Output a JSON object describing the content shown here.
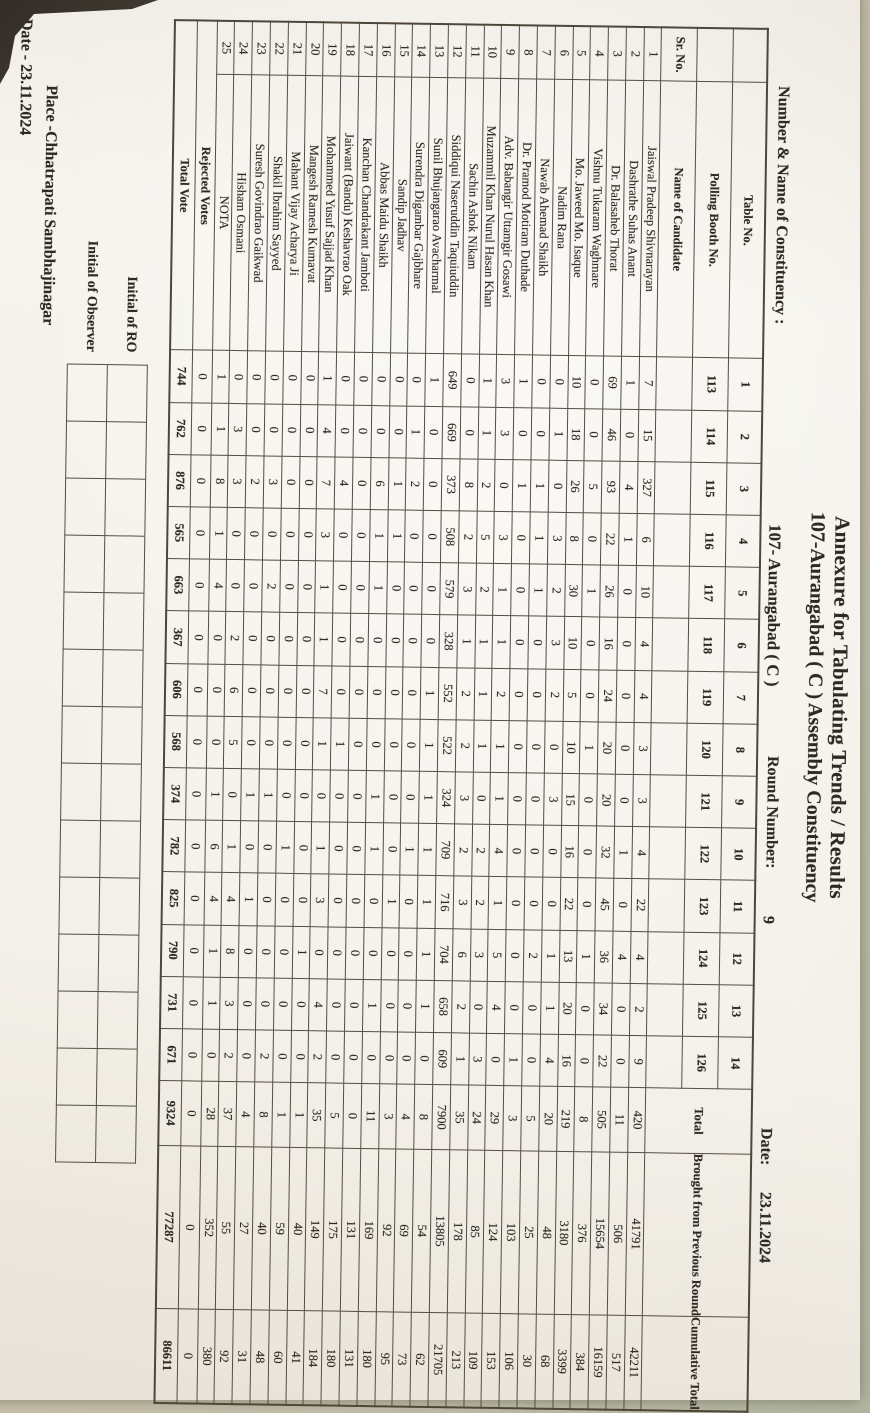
{
  "title": {
    "line1": "Annexure for Tabulating Trends / Results",
    "line2": "107-Aurangabad ( C ) Assembly Constituency"
  },
  "meta": {
    "constituency_label": "Number & Name of Constituency :",
    "constituency_value": "107- Aurangabad ( C )",
    "round_label": "Round Number:",
    "round_value": "9",
    "date_label": "Date:",
    "date_value": "23.11.2024"
  },
  "table": {
    "header": {
      "table_no_label": "Table No.",
      "polling_booth_label": "Polling Booth No.",
      "sr_no_label": "Sr. No.",
      "name_label": "Name of Candidate",
      "table_numbers": [
        "1",
        "2",
        "3",
        "4",
        "5",
        "6",
        "7",
        "8",
        "9",
        "10",
        "11",
        "12",
        "13",
        "14"
      ],
      "booth_numbers": [
        "113",
        "114",
        "115",
        "116",
        "117",
        "118",
        "119",
        "120",
        "121",
        "122",
        "123",
        "124",
        "125",
        "126"
      ],
      "total_label": "Total",
      "brought_label": "Brought from Previous Round",
      "cumulative_label": "Cumulative Total"
    },
    "rows": [
      {
        "sr": "1",
        "name": "Jaiswal Pradeep Shivnarayan",
        "v": [
          7,
          15,
          327,
          6,
          10,
          4,
          4,
          3,
          3,
          4,
          22,
          4,
          2,
          9
        ],
        "total": 420,
        "brought": 41791,
        "cumulative": 42211
      },
      {
        "sr": "2",
        "name": "Dashrathe Suhas Anant",
        "v": [
          1,
          0,
          4,
          1,
          0,
          0,
          0,
          0,
          0,
          1,
          0,
          4,
          0,
          0
        ],
        "total": 11,
        "brought": 506,
        "cumulative": 517
      },
      {
        "sr": "3",
        "name": "Dr. Balasaheb Thorat",
        "v": [
          69,
          46,
          93,
          22,
          26,
          16,
          24,
          20,
          20,
          32,
          45,
          36,
          34,
          22
        ],
        "total": 505,
        "brought": 15654,
        "cumulative": 16159
      },
      {
        "sr": "4",
        "name": "Vishnu Tukaram Waghmare",
        "v": [
          0,
          0,
          5,
          0,
          1,
          0,
          0,
          1,
          0,
          0,
          0,
          1,
          0,
          0
        ],
        "total": 8,
        "brought": 376,
        "cumulative": 384
      },
      {
        "sr": "5",
        "name": "Mo. Jaweed Mo. Isaque",
        "v": [
          10,
          18,
          26,
          8,
          30,
          10,
          5,
          10,
          15,
          16,
          22,
          13,
          20,
          16
        ],
        "total": 219,
        "brought": 3180,
        "cumulative": 3399
      },
      {
        "sr": "6",
        "name": "Nadim Rana",
        "v": [
          0,
          1,
          0,
          3,
          2,
          3,
          2,
          0,
          3,
          0,
          0,
          1,
          1,
          4
        ],
        "total": 20,
        "brought": 48,
        "cumulative": 68
      },
      {
        "sr": "7",
        "name": "Nawab Ahemad Shaikh",
        "v": [
          0,
          0,
          1,
          1,
          1,
          0,
          0,
          0,
          0,
          0,
          0,
          2,
          0,
          0
        ],
        "total": 5,
        "brought": 25,
        "cumulative": 30
      },
      {
        "sr": "8",
        "name": "Dr. Pramod Motiram Duthade",
        "v": [
          1,
          0,
          1,
          0,
          0,
          0,
          0,
          0,
          0,
          0,
          0,
          0,
          0,
          1
        ],
        "total": 3,
        "brought": 103,
        "cumulative": 106
      },
      {
        "sr": "9",
        "name": "Adv. Babangir Uttamgir Gosawi",
        "v": [
          3,
          3,
          0,
          3,
          1,
          1,
          2,
          1,
          1,
          4,
          1,
          5,
          4,
          0
        ],
        "total": 29,
        "brought": 124,
        "cumulative": 153
      },
      {
        "sr": "10",
        "name": "Muzammil Khan Nurul Hasan Khan",
        "v": [
          1,
          1,
          2,
          5,
          2,
          1,
          1,
          1,
          0,
          2,
          2,
          3,
          0,
          3
        ],
        "total": 24,
        "brought": 85,
        "cumulative": 109
      },
      {
        "sr": "11",
        "name": "Sachin Ashok Nikam",
        "v": [
          0,
          0,
          8,
          2,
          3,
          1,
          2,
          2,
          3,
          2,
          3,
          6,
          2,
          1
        ],
        "total": 35,
        "brought": 178,
        "cumulative": 213
      },
      {
        "sr": "12",
        "name": "Siddiqui Naseruddin Taquiuddin",
        "v": [
          649,
          669,
          373,
          508,
          579,
          328,
          552,
          522,
          324,
          709,
          716,
          704,
          658,
          609
        ],
        "total": 7900,
        "brought": 13805,
        "cumulative": 21705
      },
      {
        "sr": "13",
        "name": "Sunil Bhujangarao Avacharmal",
        "v": [
          1,
          0,
          0,
          0,
          0,
          0,
          1,
          1,
          1,
          1,
          1,
          1,
          1,
          0
        ],
        "total": 8,
        "brought": 54,
        "cumulative": 62
      },
      {
        "sr": "14",
        "name": "Surendra Digambar Gajbhare",
        "v": [
          0,
          1,
          2,
          0,
          0,
          0,
          0,
          0,
          0,
          1,
          0,
          0,
          0,
          0
        ],
        "total": 4,
        "brought": 69,
        "cumulative": 73
      },
      {
        "sr": "15",
        "name": "Sandip Jadhav",
        "v": [
          0,
          0,
          1,
          1,
          0,
          0,
          0,
          0,
          0,
          0,
          1,
          0,
          0,
          0
        ],
        "total": 3,
        "brought": 92,
        "cumulative": 95
      },
      {
        "sr": "16",
        "name": "Abbas Maidu Shaikh",
        "v": [
          0,
          0,
          6,
          1,
          1,
          0,
          0,
          0,
          1,
          1,
          0,
          0,
          1,
          0
        ],
        "total": 11,
        "brought": 169,
        "cumulative": 180
      },
      {
        "sr": "17",
        "name": "Kanchan Chandrakant Jamboti",
        "v": [
          0,
          0,
          0,
          0,
          0,
          0,
          0,
          0,
          0,
          0,
          0,
          0,
          0,
          0
        ],
        "total": 0,
        "brought": 131,
        "cumulative": 131
      },
      {
        "sr": "18",
        "name": "Jaiwant (Bandu) Keshavrao Oak",
        "v": [
          0,
          0,
          4,
          0,
          0,
          0,
          0,
          1,
          0,
          0,
          0,
          0,
          0,
          0
        ],
        "total": 5,
        "brought": 175,
        "cumulative": 180
      },
      {
        "sr": "19",
        "name": "Mohammed Yusuf Sajjad Khan",
        "v": [
          1,
          4,
          7,
          3,
          1,
          1,
          7,
          1,
          0,
          1,
          3,
          0,
          4,
          2
        ],
        "total": 35,
        "brought": 149,
        "cumulative": 184
      },
      {
        "sr": "20",
        "name": "Mangesh Ramesh Kumavat",
        "v": [
          0,
          0,
          0,
          0,
          0,
          0,
          0,
          0,
          0,
          0,
          0,
          1,
          0,
          0
        ],
        "total": 1,
        "brought": 40,
        "cumulative": 41
      },
      {
        "sr": "21",
        "name": "Mahant Vijay Acharya Ji",
        "v": [
          0,
          0,
          0,
          0,
          0,
          0,
          0,
          0,
          0,
          1,
          0,
          0,
          0,
          0
        ],
        "total": 1,
        "brought": 59,
        "cumulative": 60
      },
      {
        "sr": "22",
        "name": "Shakil Ibrahim Sayyed",
        "v": [
          0,
          0,
          3,
          0,
          2,
          0,
          0,
          0,
          1,
          0,
          0,
          0,
          0,
          2
        ],
        "total": 8,
        "brought": 40,
        "cumulative": 48
      },
      {
        "sr": "23",
        "name": "Suresh Govindrao Gaikwad",
        "v": [
          0,
          0,
          2,
          0,
          0,
          0,
          0,
          0,
          1,
          0,
          1,
          0,
          0,
          0
        ],
        "total": 4,
        "brought": 27,
        "cumulative": 31
      },
      {
        "sr": "24",
        "name": "Hisham Osmani",
        "v": [
          0,
          3,
          3,
          0,
          0,
          2,
          6,
          5,
          0,
          1,
          4,
          8,
          3,
          2
        ],
        "total": 37,
        "brought": 55,
        "cumulative": 92
      },
      {
        "sr": "25",
        "name": "NOTA",
        "v": [
          1,
          1,
          8,
          1,
          4,
          0,
          0,
          0,
          1,
          6,
          4,
          1,
          1,
          0
        ],
        "total": 28,
        "brought": 352,
        "cumulative": 380
      }
    ],
    "rejected": {
      "label": "Rejected Votes",
      "v": [
        0,
        0,
        0,
        0,
        0,
        0,
        0,
        0,
        0,
        0,
        0,
        0,
        0,
        0
      ],
      "total": 0,
      "brought": 0,
      "cumulative": 0
    },
    "total_vote": {
      "label": "Total Vote",
      "v": [
        744,
        762,
        876,
        565,
        663,
        367,
        606,
        568,
        374,
        782,
        825,
        790,
        731,
        671
      ],
      "total": 9324,
      "brought": 77287,
      "cumulative": 86611
    }
  },
  "footer": {
    "initial_ro": "Initial of RO",
    "initial_observer": "Initial of Observer",
    "place": "Place -Chhatrapati Sambhajinagar",
    "date": "Date - 23.11.2024"
  },
  "colors": {
    "paper": "#f4f1ea",
    "ink": "#2e2922",
    "table_line": "#554d41",
    "scan_background": "#c2bda9",
    "scan_backing": "#3b342d"
  }
}
